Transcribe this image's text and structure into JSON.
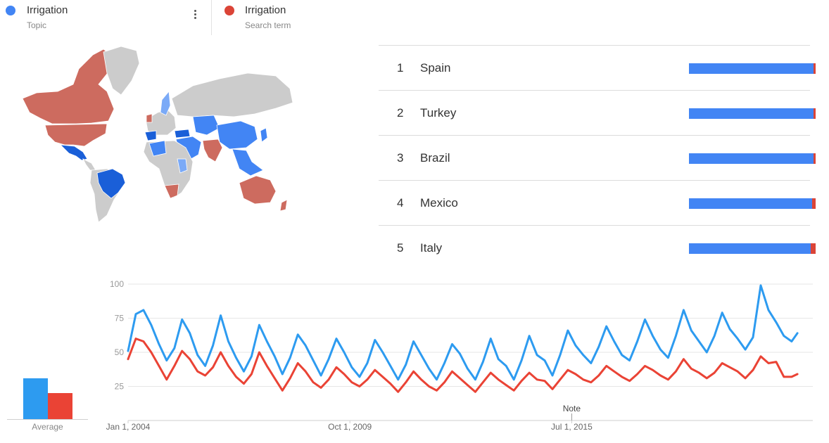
{
  "legend": [
    {
      "name": "Irrigation",
      "sub": "Topic",
      "color": "#4285f4"
    },
    {
      "name": "Irrigation",
      "sub": "Search term",
      "color": "#db4437"
    }
  ],
  "map_colors": {
    "blue_dark": "#1a5fd8",
    "blue": "#4285f4",
    "blue_light": "#7baaf7",
    "red": "#cd6b5f",
    "none": "#cccccc"
  },
  "regions": [
    {
      "rank": "1",
      "name": "Spain",
      "blue_share": 0.985,
      "red_share": 0.015
    },
    {
      "rank": "2",
      "name": "Turkey",
      "blue_share": 0.985,
      "red_share": 0.015
    },
    {
      "rank": "3",
      "name": "Brazil",
      "blue_share": 0.985,
      "red_share": 0.015
    },
    {
      "rank": "4",
      "name": "Mexico",
      "blue_share": 0.97,
      "red_share": 0.03
    },
    {
      "rank": "5",
      "name": "Italy",
      "blue_share": 0.96,
      "red_share": 0.04
    }
  ],
  "average": {
    "label": "Average",
    "topic": 54,
    "term": 34
  },
  "chart_data": {
    "type": "line",
    "y_ticks": [
      "100",
      "75",
      "50",
      "25"
    ],
    "ylim": [
      0,
      100
    ],
    "x_labels": [
      {
        "label": "Jan 1, 2004",
        "year": 2004.0
      },
      {
        "label": "Oct 1, 2009",
        "year": 2009.75
      },
      {
        "label": "Jul 1, 2015",
        "year": 2015.5
      }
    ],
    "x_range": [
      2004.0,
      2021.75
    ],
    "note": {
      "label": "Note",
      "year": 2015.5
    },
    "series": [
      {
        "name": "Irrigation",
        "color": "#2d9bf0",
        "values": [
          {
            "year": 2004.0,
            "value": 51
          },
          {
            "year": 2004.2,
            "value": 78
          },
          {
            "year": 2004.4,
            "value": 81
          },
          {
            "year": 2004.6,
            "value": 70
          },
          {
            "year": 2004.8,
            "value": 56
          },
          {
            "year": 2005.0,
            "value": 44
          },
          {
            "year": 2005.2,
            "value": 53
          },
          {
            "year": 2005.4,
            "value": 74
          },
          {
            "year": 2005.6,
            "value": 64
          },
          {
            "year": 2005.8,
            "value": 48
          },
          {
            "year": 2006.0,
            "value": 40
          },
          {
            "year": 2006.2,
            "value": 55
          },
          {
            "year": 2006.4,
            "value": 77
          },
          {
            "year": 2006.6,
            "value": 58
          },
          {
            "year": 2006.8,
            "value": 46
          },
          {
            "year": 2007.0,
            "value": 36
          },
          {
            "year": 2007.2,
            "value": 47
          },
          {
            "year": 2007.4,
            "value": 70
          },
          {
            "year": 2007.6,
            "value": 58
          },
          {
            "year": 2007.8,
            "value": 47
          },
          {
            "year": 2008.0,
            "value": 34
          },
          {
            "year": 2008.2,
            "value": 46
          },
          {
            "year": 2008.4,
            "value": 63
          },
          {
            "year": 2008.6,
            "value": 55
          },
          {
            "year": 2008.8,
            "value": 44
          },
          {
            "year": 2009.0,
            "value": 33
          },
          {
            "year": 2009.2,
            "value": 45
          },
          {
            "year": 2009.4,
            "value": 60
          },
          {
            "year": 2009.6,
            "value": 50
          },
          {
            "year": 2009.8,
            "value": 39
          },
          {
            "year": 2010.0,
            "value": 32
          },
          {
            "year": 2010.2,
            "value": 42
          },
          {
            "year": 2010.4,
            "value": 59
          },
          {
            "year": 2010.6,
            "value": 50
          },
          {
            "year": 2010.8,
            "value": 40
          },
          {
            "year": 2011.0,
            "value": 30
          },
          {
            "year": 2011.2,
            "value": 41
          },
          {
            "year": 2011.4,
            "value": 58
          },
          {
            "year": 2011.6,
            "value": 48
          },
          {
            "year": 2011.8,
            "value": 38
          },
          {
            "year": 2012.0,
            "value": 30
          },
          {
            "year": 2012.2,
            "value": 42
          },
          {
            "year": 2012.4,
            "value": 56
          },
          {
            "year": 2012.6,
            "value": 49
          },
          {
            "year": 2012.8,
            "value": 38
          },
          {
            "year": 2013.0,
            "value": 30
          },
          {
            "year": 2013.2,
            "value": 43
          },
          {
            "year": 2013.4,
            "value": 60
          },
          {
            "year": 2013.6,
            "value": 45
          },
          {
            "year": 2013.8,
            "value": 40
          },
          {
            "year": 2014.0,
            "value": 30
          },
          {
            "year": 2014.2,
            "value": 44
          },
          {
            "year": 2014.4,
            "value": 62
          },
          {
            "year": 2014.6,
            "value": 48
          },
          {
            "year": 2014.8,
            "value": 44
          },
          {
            "year": 2015.0,
            "value": 33
          },
          {
            "year": 2015.2,
            "value": 48
          },
          {
            "year": 2015.4,
            "value": 66
          },
          {
            "year": 2015.6,
            "value": 55
          },
          {
            "year": 2015.8,
            "value": 48
          },
          {
            "year": 2016.0,
            "value": 42
          },
          {
            "year": 2016.2,
            "value": 54
          },
          {
            "year": 2016.4,
            "value": 69
          },
          {
            "year": 2016.6,
            "value": 58
          },
          {
            "year": 2016.8,
            "value": 48
          },
          {
            "year": 2017.0,
            "value": 44
          },
          {
            "year": 2017.2,
            "value": 58
          },
          {
            "year": 2017.4,
            "value": 74
          },
          {
            "year": 2017.6,
            "value": 62
          },
          {
            "year": 2017.8,
            "value": 52
          },
          {
            "year": 2018.0,
            "value": 46
          },
          {
            "year": 2018.2,
            "value": 62
          },
          {
            "year": 2018.4,
            "value": 81
          },
          {
            "year": 2018.6,
            "value": 66
          },
          {
            "year": 2018.8,
            "value": 58
          },
          {
            "year": 2019.0,
            "value": 50
          },
          {
            "year": 2019.2,
            "value": 62
          },
          {
            "year": 2019.4,
            "value": 79
          },
          {
            "year": 2019.6,
            "value": 67
          },
          {
            "year": 2019.8,
            "value": 60
          },
          {
            "year": 2020.0,
            "value": 52
          },
          {
            "year": 2020.2,
            "value": 61
          },
          {
            "year": 2020.4,
            "value": 99
          },
          {
            "year": 2020.6,
            "value": 81
          },
          {
            "year": 2020.8,
            "value": 72
          },
          {
            "year": 2021.0,
            "value": 62
          },
          {
            "year": 2021.2,
            "value": 58
          },
          {
            "year": 2021.35,
            "value": 64
          }
        ]
      },
      {
        "name": "Irrigation",
        "color": "#ea4335",
        "values": [
          {
            "year": 2004.0,
            "value": 45
          },
          {
            "year": 2004.2,
            "value": 60
          },
          {
            "year": 2004.4,
            "value": 58
          },
          {
            "year": 2004.6,
            "value": 50
          },
          {
            "year": 2004.8,
            "value": 40
          },
          {
            "year": 2005.0,
            "value": 30
          },
          {
            "year": 2005.2,
            "value": 40
          },
          {
            "year": 2005.4,
            "value": 51
          },
          {
            "year": 2005.6,
            "value": 45
          },
          {
            "year": 2005.8,
            "value": 36
          },
          {
            "year": 2006.0,
            "value": 33
          },
          {
            "year": 2006.2,
            "value": 39
          },
          {
            "year": 2006.4,
            "value": 50
          },
          {
            "year": 2006.6,
            "value": 40
          },
          {
            "year": 2006.8,
            "value": 32
          },
          {
            "year": 2007.0,
            "value": 27
          },
          {
            "year": 2007.2,
            "value": 34
          },
          {
            "year": 2007.4,
            "value": 50
          },
          {
            "year": 2007.6,
            "value": 40
          },
          {
            "year": 2007.8,
            "value": 31
          },
          {
            "year": 2008.0,
            "value": 22
          },
          {
            "year": 2008.2,
            "value": 31
          },
          {
            "year": 2008.4,
            "value": 42
          },
          {
            "year": 2008.6,
            "value": 36
          },
          {
            "year": 2008.8,
            "value": 28
          },
          {
            "year": 2009.0,
            "value": 24
          },
          {
            "year": 2009.2,
            "value": 30
          },
          {
            "year": 2009.4,
            "value": 39
          },
          {
            "year": 2009.6,
            "value": 34
          },
          {
            "year": 2009.8,
            "value": 28
          },
          {
            "year": 2010.0,
            "value": 25
          },
          {
            "year": 2010.2,
            "value": 30
          },
          {
            "year": 2010.4,
            "value": 37
          },
          {
            "year": 2010.6,
            "value": 32
          },
          {
            "year": 2010.8,
            "value": 27
          },
          {
            "year": 2011.0,
            "value": 21
          },
          {
            "year": 2011.2,
            "value": 28
          },
          {
            "year": 2011.4,
            "value": 36
          },
          {
            "year": 2011.6,
            "value": 30
          },
          {
            "year": 2011.8,
            "value": 25
          },
          {
            "year": 2012.0,
            "value": 22
          },
          {
            "year": 2012.2,
            "value": 28
          },
          {
            "year": 2012.4,
            "value": 36
          },
          {
            "year": 2012.6,
            "value": 31
          },
          {
            "year": 2012.8,
            "value": 26
          },
          {
            "year": 2013.0,
            "value": 21
          },
          {
            "year": 2013.2,
            "value": 28
          },
          {
            "year": 2013.4,
            "value": 35
          },
          {
            "year": 2013.6,
            "value": 30
          },
          {
            "year": 2013.8,
            "value": 26
          },
          {
            "year": 2014.0,
            "value": 22
          },
          {
            "year": 2014.2,
            "value": 29
          },
          {
            "year": 2014.4,
            "value": 35
          },
          {
            "year": 2014.6,
            "value": 30
          },
          {
            "year": 2014.8,
            "value": 29
          },
          {
            "year": 2015.0,
            "value": 23
          },
          {
            "year": 2015.2,
            "value": 30
          },
          {
            "year": 2015.4,
            "value": 37
          },
          {
            "year": 2015.6,
            "value": 34
          },
          {
            "year": 2015.8,
            "value": 30
          },
          {
            "year": 2016.0,
            "value": 28
          },
          {
            "year": 2016.2,
            "value": 33
          },
          {
            "year": 2016.4,
            "value": 40
          },
          {
            "year": 2016.6,
            "value": 36
          },
          {
            "year": 2016.8,
            "value": 32
          },
          {
            "year": 2017.0,
            "value": 29
          },
          {
            "year": 2017.2,
            "value": 34
          },
          {
            "year": 2017.4,
            "value": 40
          },
          {
            "year": 2017.6,
            "value": 37
          },
          {
            "year": 2017.8,
            "value": 33
          },
          {
            "year": 2018.0,
            "value": 30
          },
          {
            "year": 2018.2,
            "value": 36
          },
          {
            "year": 2018.4,
            "value": 45
          },
          {
            "year": 2018.6,
            "value": 38
          },
          {
            "year": 2018.8,
            "value": 35
          },
          {
            "year": 2019.0,
            "value": 31
          },
          {
            "year": 2019.2,
            "value": 35
          },
          {
            "year": 2019.4,
            "value": 42
          },
          {
            "year": 2019.6,
            "value": 39
          },
          {
            "year": 2019.8,
            "value": 36
          },
          {
            "year": 2020.0,
            "value": 31
          },
          {
            "year": 2020.2,
            "value": 37
          },
          {
            "year": 2020.4,
            "value": 47
          },
          {
            "year": 2020.6,
            "value": 42
          },
          {
            "year": 2020.8,
            "value": 43
          },
          {
            "year": 2021.0,
            "value": 32
          },
          {
            "year": 2021.2,
            "value": 32
          },
          {
            "year": 2021.35,
            "value": 34
          }
        ]
      }
    ]
  }
}
